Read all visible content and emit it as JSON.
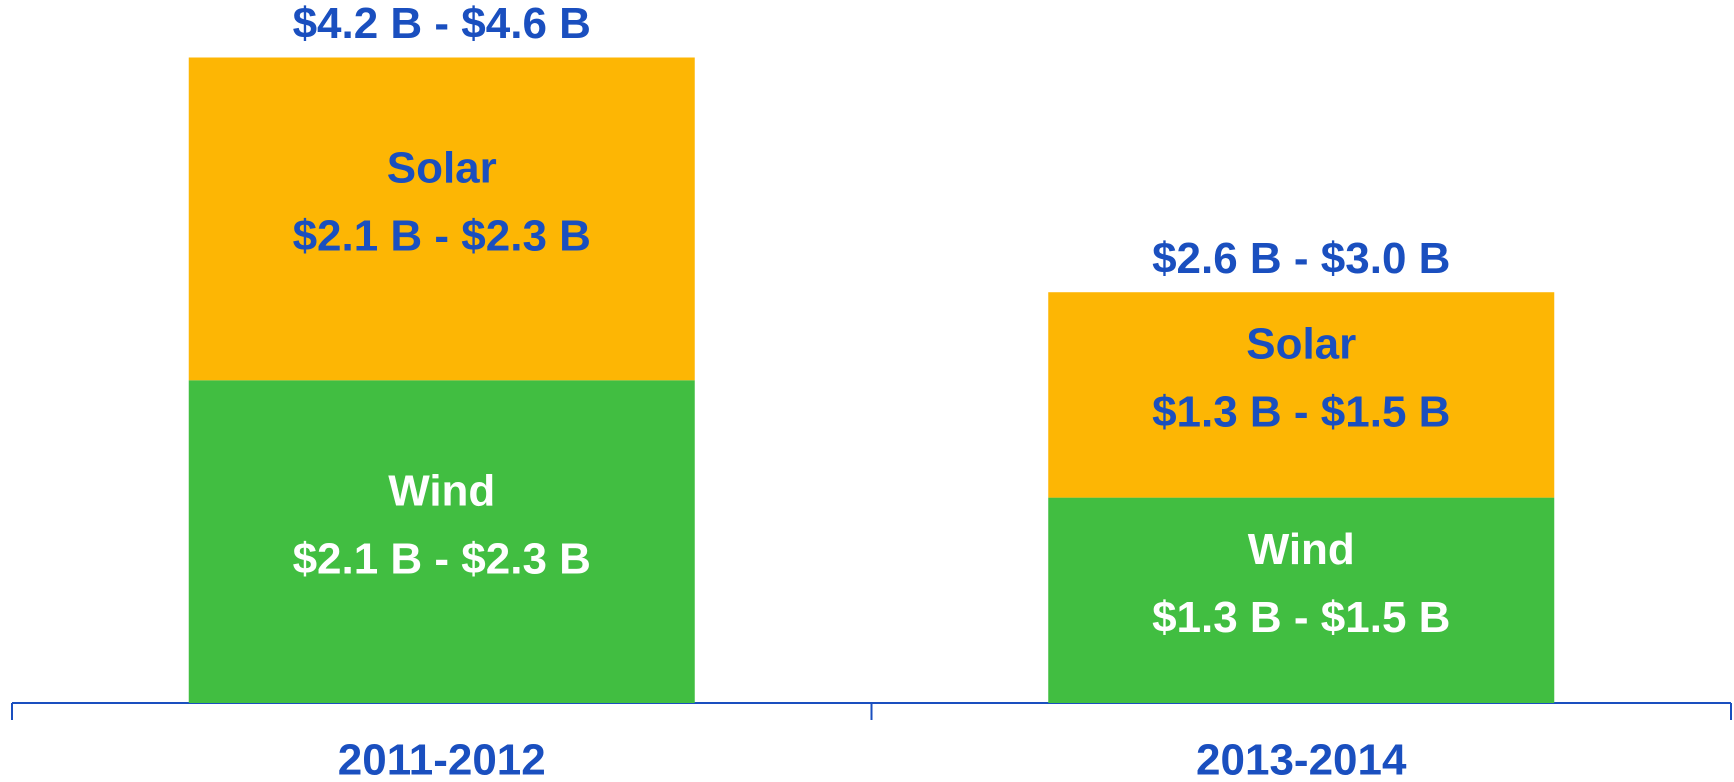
{
  "chart_data": {
    "type": "stacked_bar",
    "categories": [
      "2011-2012",
      "2013-2014"
    ],
    "series": [
      {
        "name": "Wind",
        "color": "#41be41",
        "label_color": "#ffffff",
        "values": [
          2.2,
          1.4
        ],
        "value_labels": [
          "$2.1 B - $2.3 B",
          "$1.3 B - $1.5 B"
        ]
      },
      {
        "name": "Solar",
        "color": "#fdb604",
        "label_color": "#1a4fbf",
        "values": [
          2.2,
          1.4
        ],
        "value_labels": [
          "$2.1 B - $2.3 B",
          "$1.3 B - $1.5 B"
        ]
      }
    ],
    "total_labels": [
      "$4.2 B - $4.6 B",
      "$2.6 B - $3.0 B"
    ],
    "total_label_color": "#1a4fbf",
    "axis_color": "#1a4fbf",
    "category_label_color": "#1a4fbf"
  }
}
